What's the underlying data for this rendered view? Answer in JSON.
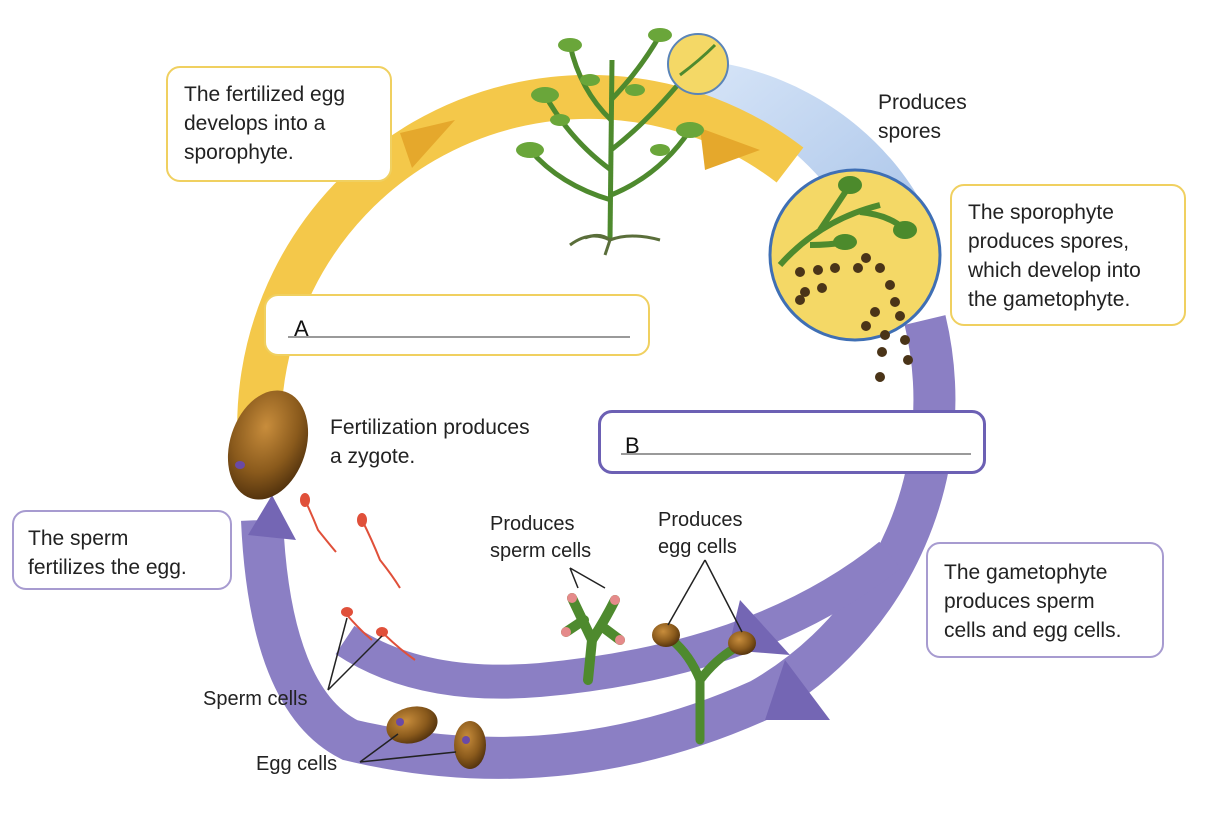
{
  "boxes": {
    "fertilized_egg": [
      "The fertilized egg",
      "develops into a",
      "sporophyte."
    ],
    "sporophyte_spores": [
      "The sporophyte",
      "produces spores,",
      "which develop into",
      "the gametophyte."
    ],
    "gametophyte": [
      "The gametophyte",
      "produces sperm",
      "cells and egg cells."
    ],
    "sperm_fertilizes": [
      "The sperm",
      "fertilizes the egg."
    ]
  },
  "blanks": {
    "a": "A",
    "b": "B"
  },
  "labels": {
    "produces_spores": [
      "Produces",
      "spores"
    ],
    "fertilization": [
      "Fertilization produces",
      "a zygote."
    ],
    "produces_sperm": [
      "Produces",
      "sperm cells"
    ],
    "produces_egg": [
      "Produces",
      "egg cells"
    ],
    "sperm_cells": "Sperm cells",
    "egg_cells": "Egg cells"
  },
  "colors": {
    "yellow_arc": "#f4c84a",
    "purple_arc": "#8b7fc4",
    "blue_beam": "#a9c6ec",
    "plant_green": "#4e8a2e",
    "egg_brown": "#8a5a1c"
  }
}
